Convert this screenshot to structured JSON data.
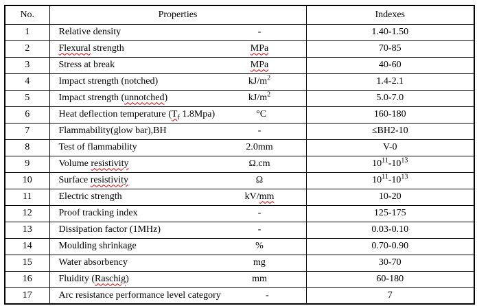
{
  "page": {
    "background_color": "#ffffff",
    "border_color": "#000000",
    "spellcheck_underline_color": "#d40000"
  },
  "table": {
    "headers": {
      "no": "No.",
      "properties": "Properties",
      "indexes": "Indexes"
    },
    "rows": [
      {
        "no": "1",
        "property": "Relative density",
        "unit": "-",
        "index": "1.40-1.50"
      },
      {
        "no": "2",
        "property": "~Flexural~ strength",
        "unit": "~MPa~",
        "index": "70-85"
      },
      {
        "no": "3",
        "property": "Stress at break",
        "unit": "~MPa~",
        "index": "40-60"
      },
      {
        "no": "4",
        "property": "Impact strength (notched)",
        "unit": "kJ/m^{2}",
        "index": "1.4-2.1"
      },
      {
        "no": "5",
        "property": "Impact strength (~unnotched~)",
        "unit": "kJ/m^{2}",
        "index": "5.0-7.0"
      },
      {
        "no": "6",
        "property": "Heat deflection temperature (~T_{f}~ 1.8Mpa)",
        "unit": "°C",
        "index": "160-180"
      },
      {
        "no": "7",
        "property": "Flammability(glow bar),BH",
        "unit": "-",
        "index": "≤BH2-10"
      },
      {
        "no": "8",
        "property": "Test of flammability",
        "unit": "2.0mm",
        "index": "V-0"
      },
      {
        "no": "9",
        "property": "Volume ~resistivity~",
        "unit": "Ω.cm",
        "index": "10^{11}-10^{13}"
      },
      {
        "no": "10",
        "property": "Surface ~resistivity~",
        "unit": "Ω",
        "index": "10^{11}-10^{13}"
      },
      {
        "no": "11",
        "property": "Electric strength",
        "unit": "kV/~mm~",
        "index": "10-20"
      },
      {
        "no": "12",
        "property": "Proof tracking index",
        "unit": "-",
        "index": "125-175"
      },
      {
        "no": "13",
        "property": "Dissipation factor (1MHz)",
        "unit": "-",
        "index": "0.03-0.10"
      },
      {
        "no": "14",
        "property": "Moulding shrinkage",
        "unit": "%",
        "index": "0.70-0.90"
      },
      {
        "no": "15",
        "property": "Water absorbency",
        "unit": "mg",
        "index": "30-70"
      },
      {
        "no": "16",
        "property": "Fluidity (~Raschig~)",
        "unit": "mm",
        "index": "60-180"
      },
      {
        "no": "17",
        "property": "Arc resistance performance level category",
        "unit": "-",
        "index": "7"
      }
    ]
  }
}
